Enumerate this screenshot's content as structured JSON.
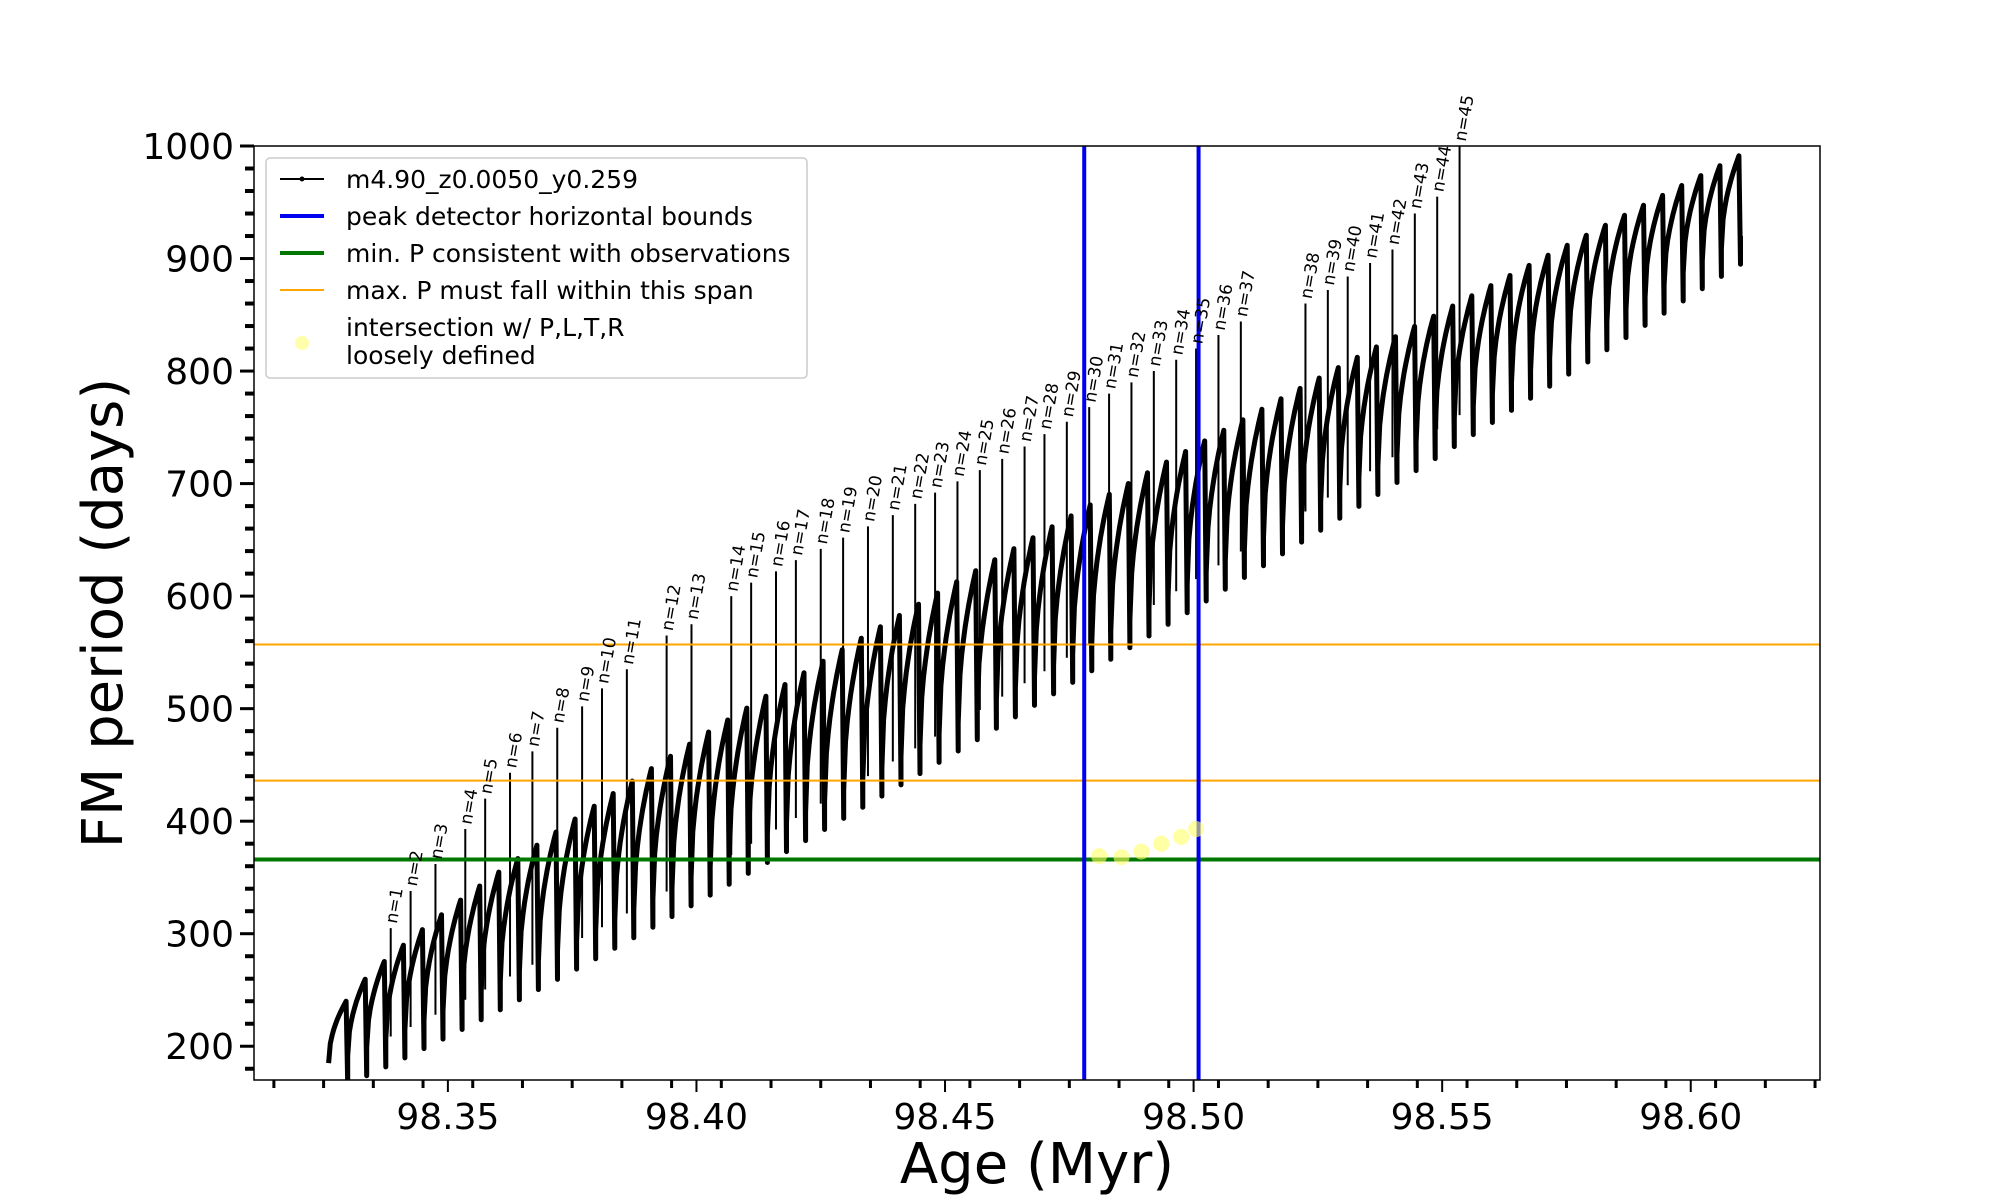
{
  "chart_data": {
    "type": "line",
    "xlabel": "Age (Myr)",
    "ylabel": "FM period (days)",
    "xlim": [
      98.311,
      98.626
    ],
    "ylim": [
      170,
      1000
    ],
    "xticks": [
      98.35,
      98.4,
      98.45,
      98.5,
      98.55,
      98.6
    ],
    "xtick_labels": [
      "98.35",
      "98.40",
      "98.45",
      "98.50",
      "98.55",
      "98.60"
    ],
    "yticks": [
      200,
      300,
      400,
      500,
      600,
      700,
      800,
      900,
      1000
    ],
    "ytick_labels": [
      "200",
      "300",
      "400",
      "500",
      "600",
      "700",
      "800",
      "900",
      "1000"
    ],
    "grid": false,
    "legend_position": "upper-left",
    "legend": [
      {
        "label": "m4.90_z0.0050_y0.259",
        "style": "black-line-dots"
      },
      {
        "label": "peak detector horizontal bounds",
        "style": "blue-line"
      },
      {
        "label": "min. P consistent with observations",
        "style": "green-line"
      },
      {
        "label": "max. P must fall within this span",
        "style": "orange-line"
      },
      {
        "label": "intersection w/ P,L,T,R",
        "label2": "loosely defined",
        "style": "yellow-dot"
      }
    ],
    "model_track": {
      "name": "m4.90_z0.0050_y0.259",
      "color": "#000000",
      "age_start": 98.326,
      "age_end": 98.61,
      "n_cycles": 74,
      "cycle_period_myr": 0.0039,
      "envelope_low_start": 185,
      "envelope_low_end": 920,
      "envelope_high_start": 240,
      "envelope_high_end": 1000,
      "spike_peaks": [
        {
          "n": "n=1",
          "age": 98.3385,
          "peak": 305
        },
        {
          "n": "n=2",
          "age": 98.3425,
          "peak": 338
        },
        {
          "n": "n=3",
          "age": 98.3475,
          "peak": 362
        },
        {
          "n": "n=4",
          "age": 98.3535,
          "peak": 393
        },
        {
          "n": "n=5",
          "age": 98.3575,
          "peak": 420
        },
        {
          "n": "n=6",
          "age": 98.3625,
          "peak": 443
        },
        {
          "n": "n=7",
          "age": 98.367,
          "peak": 462
        },
        {
          "n": "n=8",
          "age": 98.372,
          "peak": 483
        },
        {
          "n": "n=9",
          "age": 98.377,
          "peak": 502
        },
        {
          "n": "n=10",
          "age": 98.381,
          "peak": 518
        },
        {
          "n": "n=11",
          "age": 98.386,
          "peak": 535
        },
        {
          "n": "n=12",
          "age": 98.394,
          "peak": 565
        },
        {
          "n": "n=13",
          "age": 98.399,
          "peak": 575
        },
        {
          "n": "n=14",
          "age": 98.407,
          "peak": 600
        },
        {
          "n": "n=15",
          "age": 98.411,
          "peak": 612
        },
        {
          "n": "n=16",
          "age": 98.416,
          "peak": 622
        },
        {
          "n": "n=17",
          "age": 98.42,
          "peak": 632
        },
        {
          "n": "n=18",
          "age": 98.425,
          "peak": 642
        },
        {
          "n": "n=19",
          "age": 98.4295,
          "peak": 652
        },
        {
          "n": "n=20",
          "age": 98.4345,
          "peak": 662
        },
        {
          "n": "n=21",
          "age": 98.4395,
          "peak": 672
        },
        {
          "n": "n=22",
          "age": 98.444,
          "peak": 682
        },
        {
          "n": "n=23",
          "age": 98.448,
          "peak": 692
        },
        {
          "n": "n=24",
          "age": 98.4525,
          "peak": 702
        },
        {
          "n": "n=25",
          "age": 98.457,
          "peak": 712
        },
        {
          "n": "n=26",
          "age": 98.4615,
          "peak": 722
        },
        {
          "n": "n=27",
          "age": 98.466,
          "peak": 733
        },
        {
          "n": "n=28",
          "age": 98.47,
          "peak": 744
        },
        {
          "n": "n=29",
          "age": 98.4745,
          "peak": 755
        },
        {
          "n": "n=30",
          "age": 98.479,
          "peak": 768
        },
        {
          "n": "n=31",
          "age": 98.483,
          "peak": 780
        },
        {
          "n": "n=32",
          "age": 98.4875,
          "peak": 790
        },
        {
          "n": "n=33",
          "age": 98.492,
          "peak": 800
        },
        {
          "n": "n=34",
          "age": 98.4965,
          "peak": 810
        },
        {
          "n": "n=35",
          "age": 98.5005,
          "peak": 820
        },
        {
          "n": "n=36",
          "age": 98.505,
          "peak": 832
        },
        {
          "n": "n=37",
          "age": 98.5095,
          "peak": 844
        },
        {
          "n": "n=38",
          "age": 98.5225,
          "peak": 860
        },
        {
          "n": "n=39",
          "age": 98.527,
          "peak": 872
        },
        {
          "n": "n=40",
          "age": 98.531,
          "peak": 884
        },
        {
          "n": "n=41",
          "age": 98.5355,
          "peak": 896
        },
        {
          "n": "n=42",
          "age": 98.54,
          "peak": 908
        },
        {
          "n": "n=43",
          "age": 98.5445,
          "peak": 940
        },
        {
          "n": "n=44",
          "age": 98.549,
          "peak": 955
        },
        {
          "n": "n=45",
          "age": 98.5535,
          "peak": 1000
        }
      ]
    },
    "vertical_lines": [
      {
        "name": "peak detector horizontal bounds",
        "x": 98.478,
        "color": "#0000ee"
      },
      {
        "name": "peak detector horizontal bounds",
        "x": 98.501,
        "color": "#0000ee"
      }
    ],
    "horizontal_lines": [
      {
        "name": "min. P consistent with observations",
        "y": 366,
        "color": "#007700"
      },
      {
        "name": "max. P must fall within this span",
        "y": 436,
        "color": "#ffa500"
      },
      {
        "name": "max. P must fall within this span",
        "y": 557,
        "color": "#ffa500"
      }
    ],
    "intersection_points": {
      "name": "intersection w/ P,L,T,R loosely defined",
      "color": "#ffff66",
      "x": [
        98.481,
        98.4855,
        98.4895,
        98.4935,
        98.4975,
        98.5005
      ],
      "y": [
        369,
        368,
        373,
        380,
        386,
        393
      ]
    }
  }
}
